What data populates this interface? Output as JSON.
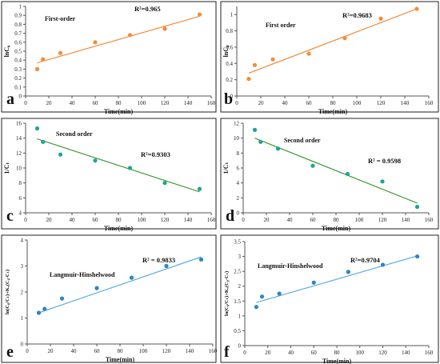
{
  "chart_data": [
    {
      "type": "scatter",
      "panel_letter": "a",
      "inset_label": "First-order",
      "r2_label": "R²=0.965",
      "xlabel": "Time(min)",
      "ylabel": "lnC₀",
      "xlim": [
        0,
        160
      ],
      "ylim": [
        0,
        1
      ],
      "xticks": [
        "0",
        "20",
        "40",
        "60",
        "80",
        "100",
        "120",
        "140",
        "160"
      ],
      "yticks": [
        "0",
        "0.1",
        "0.2",
        "0.3",
        "0.4",
        "0.5",
        "0.6",
        "0.7",
        "0.8",
        "0.9",
        "1"
      ],
      "grid": false,
      "marker_color": "#F28C3A",
      "line_color": "#F28C3A",
      "x": [
        10,
        15,
        30,
        60,
        90,
        120,
        150
      ],
      "y": [
        0.3,
        0.41,
        0.48,
        0.6,
        0.68,
        0.75,
        0.91
      ],
      "fit": {
        "x": [
          10,
          150
        ],
        "y": [
          0.37,
          0.89
        ]
      }
    },
    {
      "type": "scatter",
      "panel_letter": "b",
      "inset_label": "First order",
      "r2_label": "R²=0.9683",
      "xlabel": "Time(min)",
      "ylabel": "lnC₀",
      "xlim": [
        0,
        160
      ],
      "ylim": [
        0,
        1.1
      ],
      "xticks": [
        "0",
        "20",
        "40",
        "60",
        "80",
        "100",
        "120",
        "140",
        "160"
      ],
      "yticks": [
        "0",
        "0.2",
        "0.4",
        "0.6",
        "0.8",
        "1"
      ],
      "grid": false,
      "marker_color": "#F28C3A",
      "line_color": "#F28C3A",
      "x": [
        10,
        15,
        30,
        60,
        90,
        120,
        150
      ],
      "y": [
        0.21,
        0.38,
        0.45,
        0.52,
        0.71,
        0.95,
        1.07
      ],
      "fit": {
        "x": [
          10,
          150
        ],
        "y": [
          0.28,
          1.07
        ]
      }
    },
    {
      "type": "scatter",
      "panel_letter": "c",
      "inset_label": "Second order",
      "r2_label": "R²=0.9303",
      "xlabel": "Time(min)",
      "ylabel": "1/Cₜ",
      "xlim": [
        0,
        160
      ],
      "ylim": [
        4,
        16
      ],
      "xticks": [
        "0",
        "20",
        "40",
        "60",
        "80",
        "100",
        "120",
        "140",
        "160"
      ],
      "yticks": [
        "4",
        "6",
        "8",
        "10",
        "12",
        "14",
        "16"
      ],
      "grid": false,
      "marker_color": "#1FA58C",
      "line_color": "#3E9B35",
      "x": [
        10,
        15,
        30,
        60,
        90,
        120,
        150
      ],
      "y": [
        15.3,
        13.5,
        11.8,
        11.0,
        10.0,
        8.0,
        7.2
      ],
      "fit": {
        "x": [
          10,
          150
        ],
        "y": [
          13.9,
          6.8
        ]
      }
    },
    {
      "type": "scatter",
      "panel_letter": "d",
      "inset_label": "Second order",
      "r2_label": "R² = 0.9598",
      "xlabel": "Time(min)",
      "ylabel": "1/Cₜ",
      "xlim": [
        0,
        160
      ],
      "ylim": [
        0,
        12
      ],
      "xticks": [
        "0",
        "20",
        "40",
        "60",
        "80",
        "100",
        "120",
        "140",
        "160"
      ],
      "yticks": [
        "0",
        "2",
        "4",
        "6",
        "8",
        "10",
        "12"
      ],
      "grid": false,
      "marker_color": "#1FA58C",
      "line_color": "#3E9B35",
      "x": [
        10,
        15,
        30,
        60,
        90,
        120,
        150
      ],
      "y": [
        11.1,
        9.5,
        8.6,
        6.3,
        5.2,
        4.2,
        0.8
      ],
      "fit": {
        "x": [
          10,
          150
        ],
        "y": [
          10.0,
          1.3
        ]
      }
    },
    {
      "type": "scatter",
      "panel_letter": "e",
      "inset_label": "Langmuir-Hinshelwood",
      "r2_label": "R² = 0.9833",
      "xlabel": "Time(min)",
      "ylabel": "ln(C₀/Cₜ)+Kₐ(C₀-Cₜ)",
      "xlim": [
        0,
        160
      ],
      "ylim": [
        0,
        4
      ],
      "xticks": [
        "0",
        "20",
        "40",
        "60",
        "80",
        "100",
        "120",
        "140",
        "160"
      ],
      "yticks": [
        "0",
        "1",
        "2",
        "3",
        "4"
      ],
      "grid": false,
      "marker_color": "#2E86C1",
      "line_color": "#5DADE2",
      "x": [
        10,
        15,
        30,
        60,
        90,
        120,
        150
      ],
      "y": [
        1.2,
        1.35,
        1.75,
        2.15,
        2.55,
        3.0,
        3.25
      ],
      "fit": {
        "x": [
          10,
          150
        ],
        "y": [
          1.2,
          3.35
        ]
      }
    },
    {
      "type": "scatter",
      "panel_letter": "f",
      "inset_label": "Langmuir-Hinshelwood",
      "r2_label": "R²=0.9704",
      "xlabel": "Time(min)",
      "ylabel": "ln(C₀/Cₜ)+Kₐ(C₀-Cₜ)",
      "xlim": [
        0,
        160
      ],
      "ylim": [
        0,
        3.5
      ],
      "xticks": [
        "0",
        "20",
        "40",
        "60",
        "80",
        "100",
        "120",
        "140",
        "160"
      ],
      "yticks": [
        "0",
        "0.5",
        "1",
        "1.5",
        "2",
        "2.5",
        "3",
        "3.5"
      ],
      "grid": false,
      "marker_color": "#2E86C1",
      "line_color": "#5DADE2",
      "x": [
        10,
        15,
        30,
        60,
        90,
        120,
        150
      ],
      "y": [
        1.3,
        1.65,
        1.75,
        2.12,
        2.48,
        2.72,
        3.0
      ],
      "fit": {
        "x": [
          10,
          150
        ],
        "y": [
          1.45,
          3.02
        ]
      }
    }
  ]
}
